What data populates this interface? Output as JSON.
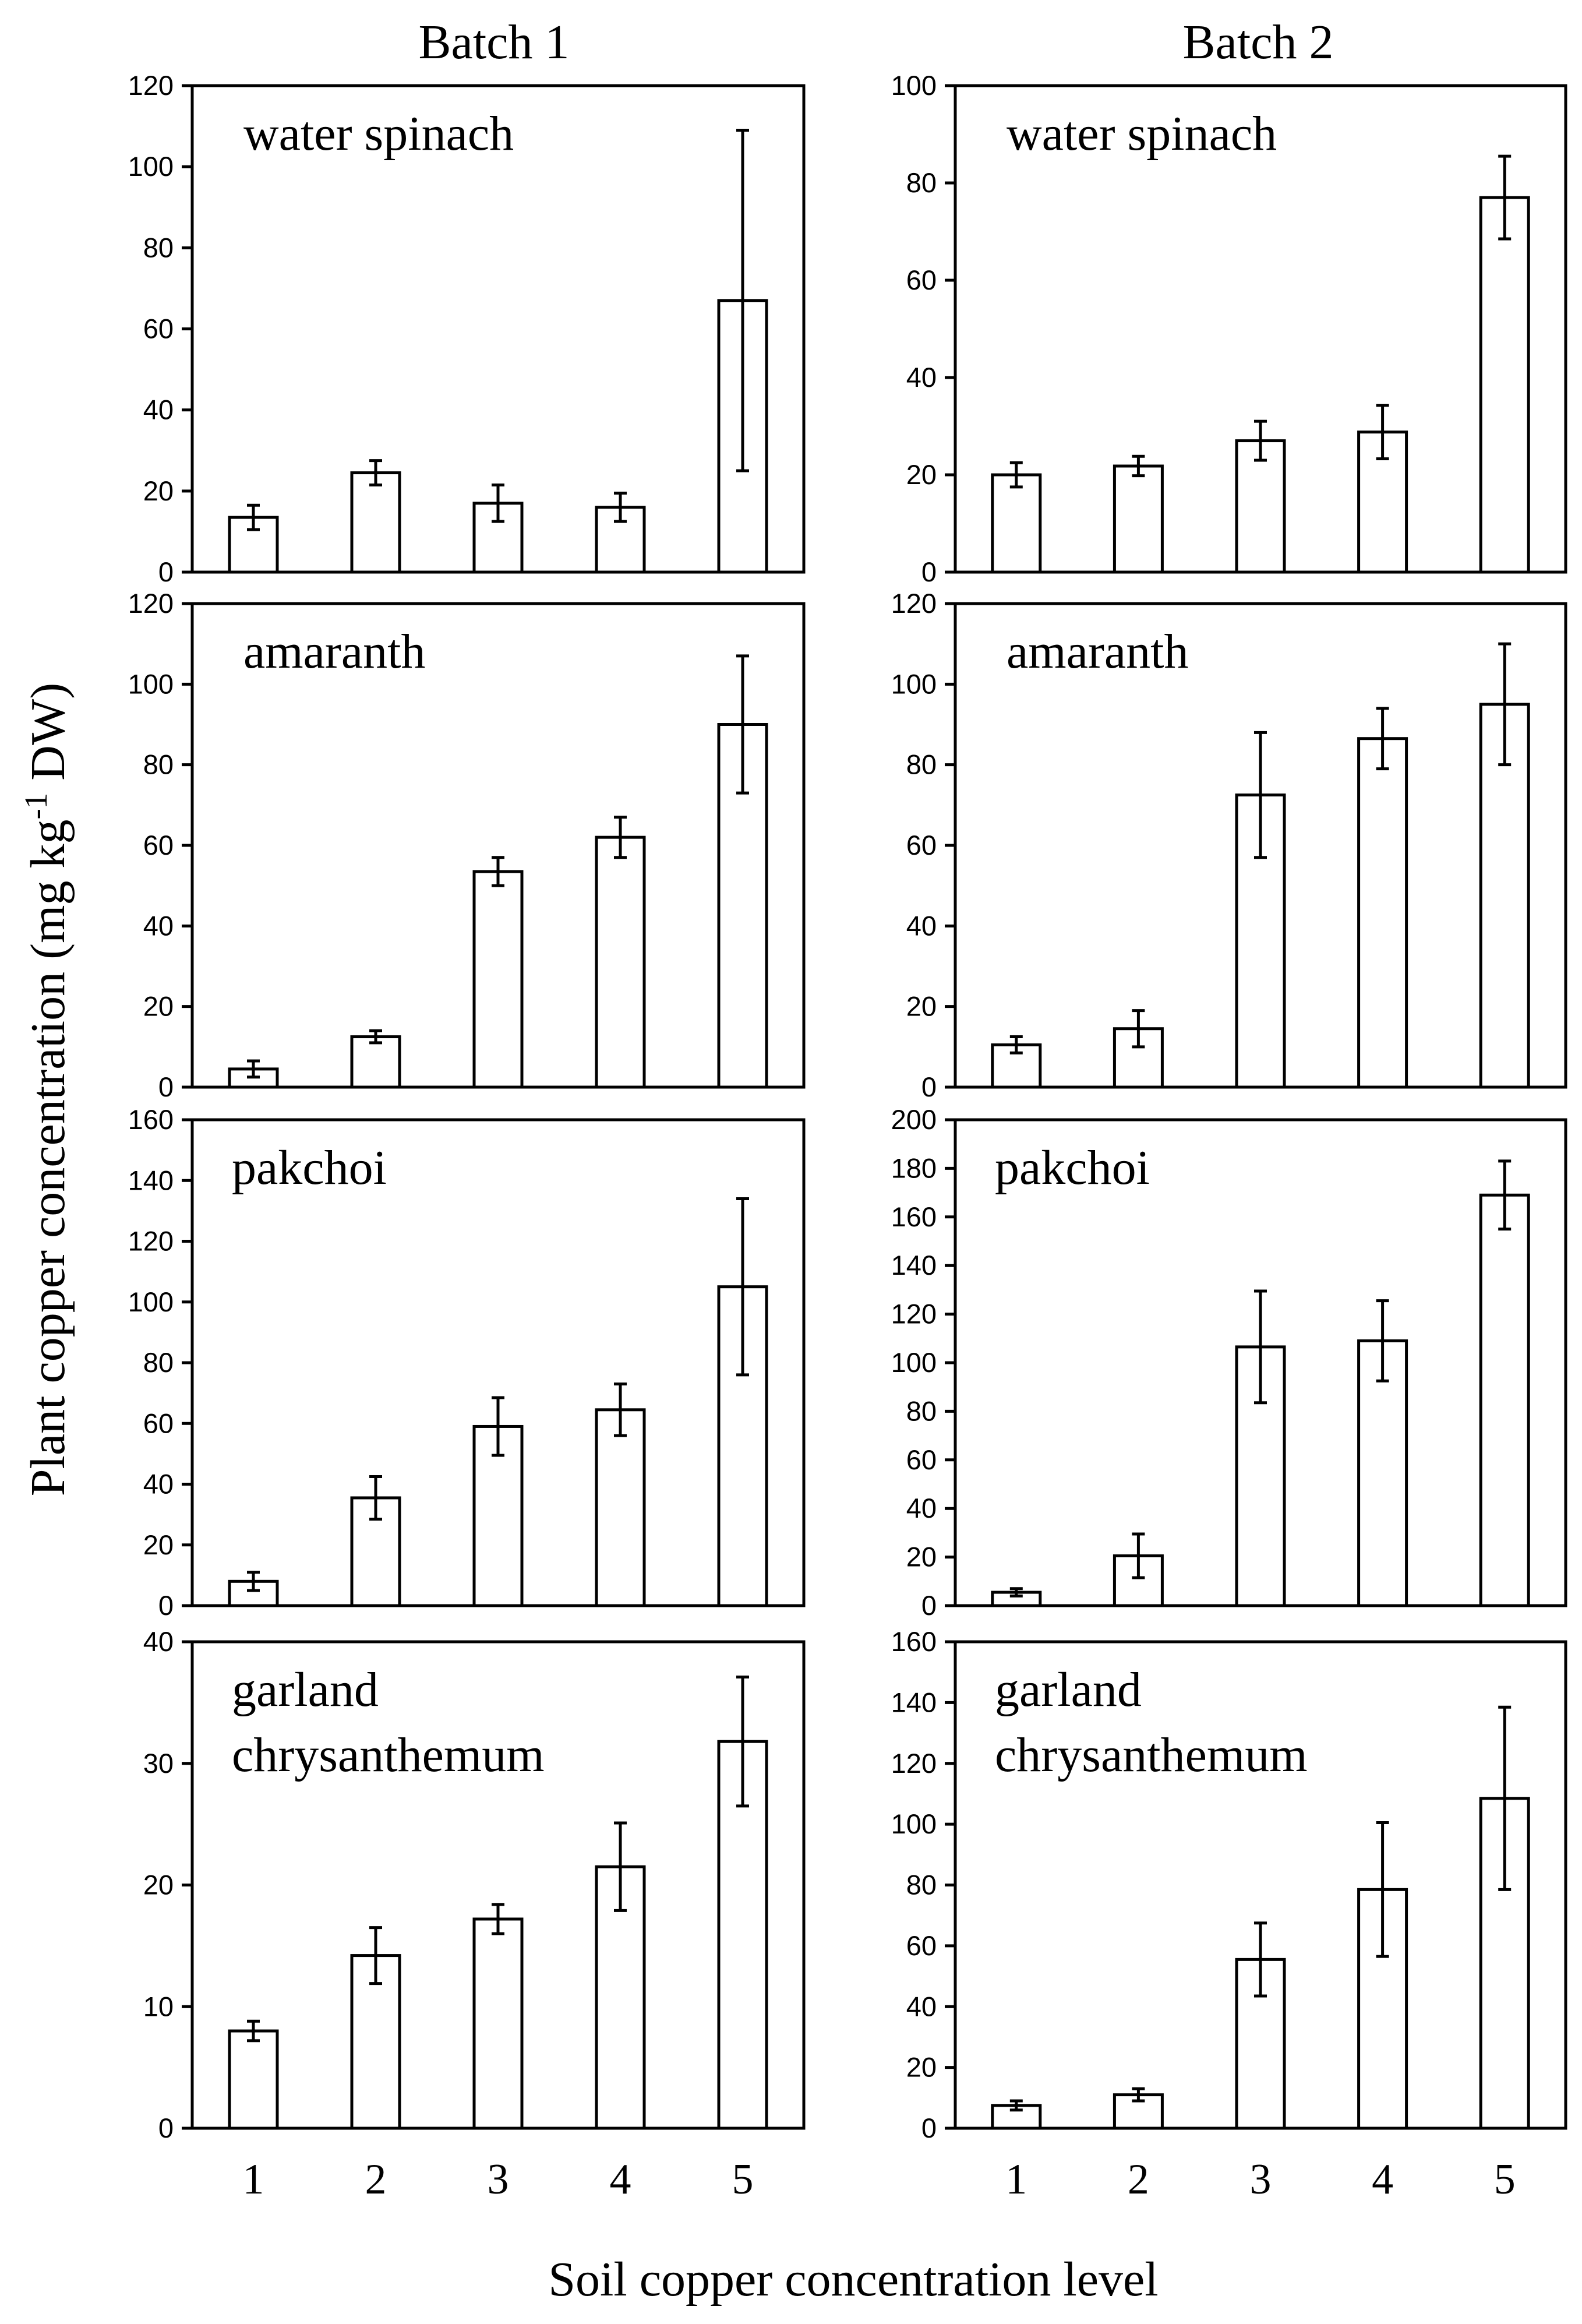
{
  "figure": {
    "columns": [
      "Batch 1",
      "Batch 2"
    ],
    "ylabel_main": "Plant copper concentration (mg kg",
    "ylabel_sup": "-1",
    "ylabel_tail": " DW)",
    "xlabel": "Soil copper concentration level",
    "categories": [
      "1",
      "2",
      "3",
      "4",
      "5"
    ]
  },
  "chart_data": [
    {
      "type": "bar",
      "batch": "Batch 1",
      "label_lines": [
        "water spinach"
      ],
      "categories": [
        "1",
        "2",
        "3",
        "4",
        "5"
      ],
      "values": [
        13.5,
        24.5,
        17,
        16,
        67
      ],
      "errors": [
        3,
        3,
        4.5,
        3.5,
        42
      ],
      "ylim": [
        0,
        120
      ],
      "yticks": [
        0,
        20,
        40,
        60,
        80,
        100,
        120
      ]
    },
    {
      "type": "bar",
      "batch": "Batch 2",
      "label_lines": [
        "water spinach"
      ],
      "categories": [
        "1",
        "2",
        "3",
        "4",
        "5"
      ],
      "values": [
        20,
        21.8,
        27,
        28.8,
        77
      ],
      "errors": [
        2.5,
        2,
        4,
        5.5,
        8.5
      ],
      "ylim": [
        0,
        100
      ],
      "yticks": [
        0,
        20,
        40,
        60,
        80,
        100
      ]
    },
    {
      "type": "bar",
      "batch": "Batch 1",
      "label_lines": [
        "amaranth"
      ],
      "categories": [
        "1",
        "2",
        "3",
        "4",
        "5"
      ],
      "values": [
        4.5,
        12.5,
        53.5,
        62,
        90
      ],
      "errors": [
        2,
        1.5,
        3.5,
        5,
        17
      ],
      "ylim": [
        0,
        120
      ],
      "yticks": [
        0,
        20,
        40,
        60,
        80,
        100,
        120
      ]
    },
    {
      "type": "bar",
      "batch": "Batch 2",
      "label_lines": [
        "amaranth"
      ],
      "categories": [
        "1",
        "2",
        "3",
        "4",
        "5"
      ],
      "values": [
        10.5,
        14.5,
        72.5,
        86.5,
        95
      ],
      "errors": [
        2,
        4.5,
        15.5,
        7.5,
        15
      ],
      "ylim": [
        0,
        120
      ],
      "yticks": [
        0,
        20,
        40,
        60,
        80,
        100,
        120
      ]
    },
    {
      "type": "bar",
      "batch": "Batch 1",
      "label_lines": [
        "pakchoi"
      ],
      "categories": [
        "1",
        "2",
        "3",
        "4",
        "5"
      ],
      "values": [
        8,
        35.5,
        59,
        64.5,
        105
      ],
      "errors": [
        3,
        7,
        9.5,
        8.5,
        29
      ],
      "ylim": [
        0,
        160
      ],
      "yticks": [
        0,
        20,
        40,
        60,
        80,
        100,
        120,
        140,
        160
      ]
    },
    {
      "type": "bar",
      "batch": "Batch 2",
      "label_lines": [
        "pakchoi"
      ],
      "categories": [
        "1",
        "2",
        "3",
        "4",
        "5"
      ],
      "values": [
        5.5,
        20.5,
        106.5,
        109,
        169
      ],
      "errors": [
        1.5,
        9,
        23,
        16.5,
        14
      ],
      "ylim": [
        0,
        200
      ],
      "yticks": [
        0,
        20,
        40,
        60,
        80,
        100,
        120,
        140,
        160,
        180,
        200
      ]
    },
    {
      "type": "bar",
      "batch": "Batch 1",
      "label_lines": [
        "garland",
        "chrysanthemum"
      ],
      "categories": [
        "1",
        "2",
        "3",
        "4",
        "5"
      ],
      "values": [
        8,
        14.2,
        17.2,
        21.5,
        31.8
      ],
      "errors": [
        0.8,
        2.3,
        1.2,
        3.6,
        5.3
      ],
      "ylim": [
        0,
        40
      ],
      "yticks": [
        0,
        10,
        20,
        30,
        40
      ]
    },
    {
      "type": "bar",
      "batch": "Batch 2",
      "label_lines": [
        "garland",
        "chrysanthemum"
      ],
      "categories": [
        "1",
        "2",
        "3",
        "4",
        "5"
      ],
      "values": [
        7.5,
        11,
        55.5,
        78.5,
        108.5
      ],
      "errors": [
        1.5,
        2,
        12,
        22,
        30
      ],
      "ylim": [
        0,
        160
      ],
      "yticks": [
        0,
        20,
        40,
        60,
        80,
        100,
        120,
        140,
        160
      ]
    }
  ]
}
